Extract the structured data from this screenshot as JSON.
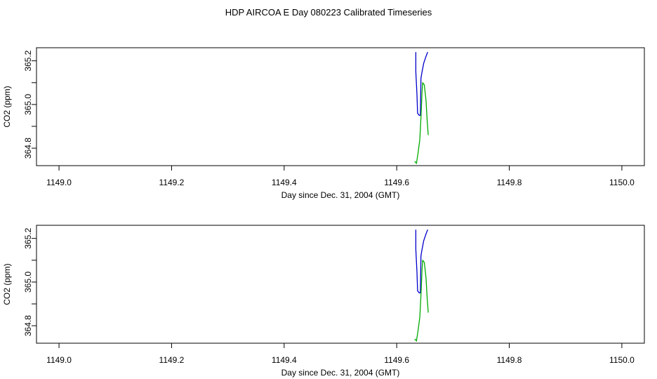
{
  "title": "HDP AIRCOA E  Day 080223  Calibrated Timeseries",
  "chart_data": [
    {
      "type": "line",
      "xlabel": "Day since Dec. 31, 2004 (GMT)",
      "ylabel": "CO2 (ppm)",
      "xlim": [
        1148.96,
        1150.04
      ],
      "ylim": [
        364.72,
        365.26
      ],
      "xticks": [
        "1149.0",
        "1149.2",
        "1149.4",
        "1149.6",
        "1149.8",
        "1150.0"
      ],
      "yticks": [
        "364.8",
        "365.0",
        "365.2"
      ],
      "grid": false,
      "series": [
        {
          "color": "#0000cc",
          "x": [
            1149.634,
            1149.634,
            1149.636,
            1149.637,
            1149.64,
            1149.642,
            1149.643,
            1149.645,
            1149.648,
            1149.652,
            1149.655
          ],
          "y": [
            365.24,
            365.15,
            365.04,
            364.96,
            364.95,
            364.95,
            365.12,
            365.15,
            365.19,
            365.22,
            365.24
          ]
        },
        {
          "color": "#00aa00",
          "x": [
            1149.632,
            1149.635,
            1149.638,
            1149.641,
            1149.643,
            1149.645,
            1149.646,
            1149.649,
            1149.652,
            1149.654,
            1149.656
          ],
          "y": [
            364.74,
            364.73,
            364.78,
            364.84,
            364.94,
            365.06,
            365.1,
            365.09,
            365.02,
            364.93,
            364.86
          ]
        }
      ]
    },
    {
      "type": "line",
      "xlabel": "Day since Dec. 31, 2004 (GMT)",
      "ylabel": "CO2 (ppm)",
      "xlim": [
        1148.96,
        1150.04
      ],
      "ylim": [
        364.72,
        365.26
      ],
      "xticks": [
        "1149.0",
        "1149.2",
        "1149.4",
        "1149.6",
        "1149.8",
        "1150.0"
      ],
      "yticks": [
        "364.8",
        "365.0",
        "365.2"
      ],
      "grid": false,
      "series": [
        {
          "color": "#0000cc",
          "x": [
            1149.634,
            1149.634,
            1149.636,
            1149.637,
            1149.64,
            1149.642,
            1149.643,
            1149.645,
            1149.648,
            1149.652,
            1149.655
          ],
          "y": [
            365.24,
            365.15,
            365.04,
            364.96,
            364.95,
            364.95,
            365.12,
            365.15,
            365.19,
            365.22,
            365.24
          ]
        },
        {
          "color": "#00aa00",
          "x": [
            1149.632,
            1149.635,
            1149.638,
            1149.641,
            1149.643,
            1149.645,
            1149.646,
            1149.649,
            1149.652,
            1149.654,
            1149.656
          ],
          "y": [
            364.74,
            364.73,
            364.78,
            364.84,
            364.94,
            365.06,
            365.1,
            365.09,
            365.02,
            364.93,
            364.86
          ]
        }
      ]
    }
  ]
}
